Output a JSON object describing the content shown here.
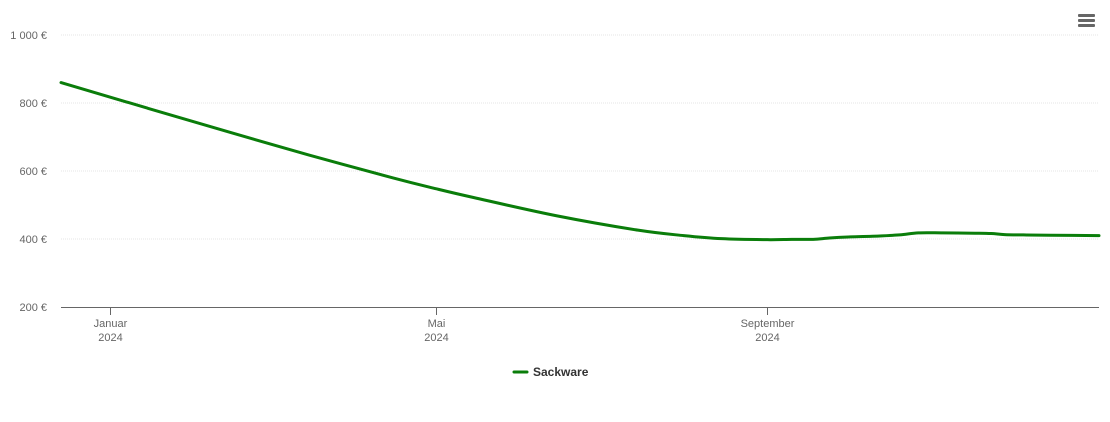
{
  "menu": {
    "icon": "hamburger-menu-icon"
  },
  "colors": {
    "series": "#0a7d0a",
    "grid": "#e6e6e6",
    "axis": "#666666",
    "text": "#666666"
  },
  "chart_data": {
    "type": "line",
    "title": "",
    "xlabel": "",
    "ylabel": "",
    "ylim": [
      200,
      1000
    ],
    "yticks": [
      {
        "value": 200,
        "label": "200 €"
      },
      {
        "value": 400,
        "label": "400 €"
      },
      {
        "value": 600,
        "label": "600 €"
      },
      {
        "value": 800,
        "label": "800 €"
      },
      {
        "value": 1000,
        "label": "1 000 €"
      }
    ],
    "xlim": [
      "2023-12-14",
      "2025-01-02"
    ],
    "xticks": [
      {
        "date": "2024-01-01",
        "label": [
          "Januar",
          "2024"
        ]
      },
      {
        "date": "2024-05-01",
        "label": [
          "Mai",
          "2024"
        ]
      },
      {
        "date": "2024-09-01",
        "label": [
          "September",
          "2024"
        ]
      }
    ],
    "grid": true,
    "legend": "bottom-center",
    "series": [
      {
        "name": "Sackware",
        "color": "#0a7d0a",
        "points": [
          [
            "2023-12-14",
            860
          ],
          [
            "2024-01-15",
            785
          ],
          [
            "2024-02-15",
            713
          ],
          [
            "2024-03-15",
            647
          ],
          [
            "2024-04-15",
            580
          ],
          [
            "2024-05-01",
            548
          ],
          [
            "2024-05-15",
            522
          ],
          [
            "2024-06-15",
            468
          ],
          [
            "2024-07-15",
            426
          ],
          [
            "2024-08-01",
            410
          ],
          [
            "2024-08-15",
            401
          ],
          [
            "2024-09-01",
            398
          ],
          [
            "2024-09-10",
            399
          ],
          [
            "2024-09-18",
            399
          ],
          [
            "2024-09-24",
            403
          ],
          [
            "2024-10-01",
            406
          ],
          [
            "2024-10-10",
            408
          ],
          [
            "2024-10-20",
            412
          ],
          [
            "2024-10-27",
            418
          ],
          [
            "2024-11-05",
            418
          ],
          [
            "2024-11-17",
            417
          ],
          [
            "2024-11-23",
            416
          ],
          [
            "2024-11-28",
            413
          ],
          [
            "2024-12-05",
            412
          ],
          [
            "2024-12-15",
            411
          ],
          [
            "2025-01-02",
            410
          ]
        ]
      }
    ]
  }
}
